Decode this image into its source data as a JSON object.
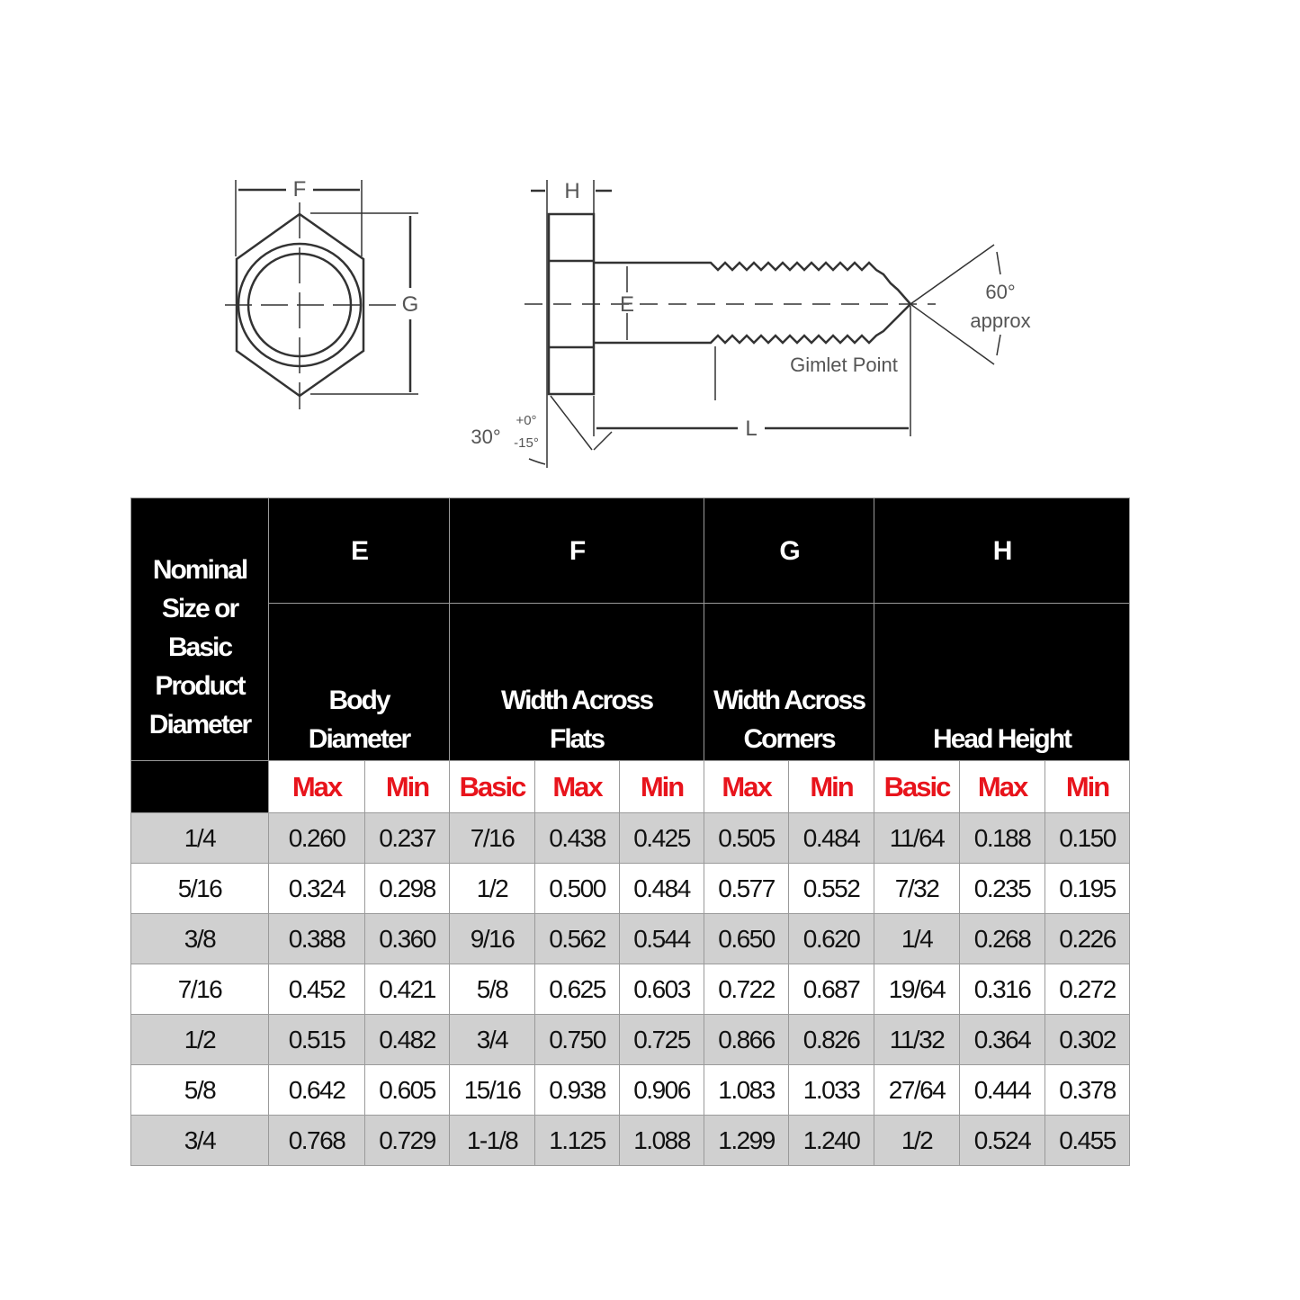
{
  "diagram": {
    "labels": {
      "F": "F",
      "G": "G",
      "H": "H",
      "E": "E",
      "L": "L",
      "angle_top": "60°",
      "approx": "approx",
      "gimlet": "Gimlet Point",
      "head_angle": "30°",
      "tol_plus": "+0°",
      "tol_minus": "-15°"
    }
  },
  "table": {
    "groups": [
      {
        "letter": "E",
        "desc1": "Body",
        "desc2": "Diameter"
      },
      {
        "letter": "F",
        "desc1": "Width Across",
        "desc2": "Flats"
      },
      {
        "letter": "G",
        "desc1": "Width Across",
        "desc2": "Corners"
      },
      {
        "letter": "H",
        "desc1": "",
        "desc2": "Head Height"
      }
    ],
    "first_header": [
      "Nominal",
      "Size or",
      "Basic",
      "Product",
      "Diameter"
    ],
    "subheaders": [
      "Max",
      "Min",
      "Basic",
      "Max",
      "Min",
      "Max",
      "Min",
      "Basic",
      "Max",
      "Min"
    ],
    "rows": [
      [
        "1/4",
        "0.260",
        "0.237",
        "7/16",
        "0.438",
        "0.425",
        "0.505",
        "0.484",
        "11/64",
        "0.188",
        "0.150"
      ],
      [
        "5/16",
        "0.324",
        "0.298",
        "1/2",
        "0.500",
        "0.484",
        "0.577",
        "0.552",
        "7/32",
        "0.235",
        "0.195"
      ],
      [
        "3/8",
        "0.388",
        "0.360",
        "9/16",
        "0.562",
        "0.544",
        "0.650",
        "0.620",
        "1/4",
        "0.268",
        "0.226"
      ],
      [
        "7/16",
        "0.452",
        "0.421",
        "5/8",
        "0.625",
        "0.603",
        "0.722",
        "0.687",
        "19/64",
        "0.316",
        "0.272"
      ],
      [
        "1/2",
        "0.515",
        "0.482",
        "3/4",
        "0.750",
        "0.725",
        "0.866",
        "0.826",
        "11/32",
        "0.364",
        "0.302"
      ],
      [
        "5/8",
        "0.642",
        "0.605",
        "15/16",
        "0.938",
        "0.906",
        "1.083",
        "1.033",
        "27/64",
        "0.444",
        "0.378"
      ],
      [
        "3/4",
        "0.768",
        "0.729",
        "1-1/8",
        "1.125",
        "1.088",
        "1.299",
        "1.240",
        "1/2",
        "0.524",
        "0.455"
      ]
    ],
    "colors": {
      "header_bg": "#000000",
      "subheader_text": "#e8141c",
      "row_shaded": "#d0d0d0"
    }
  }
}
